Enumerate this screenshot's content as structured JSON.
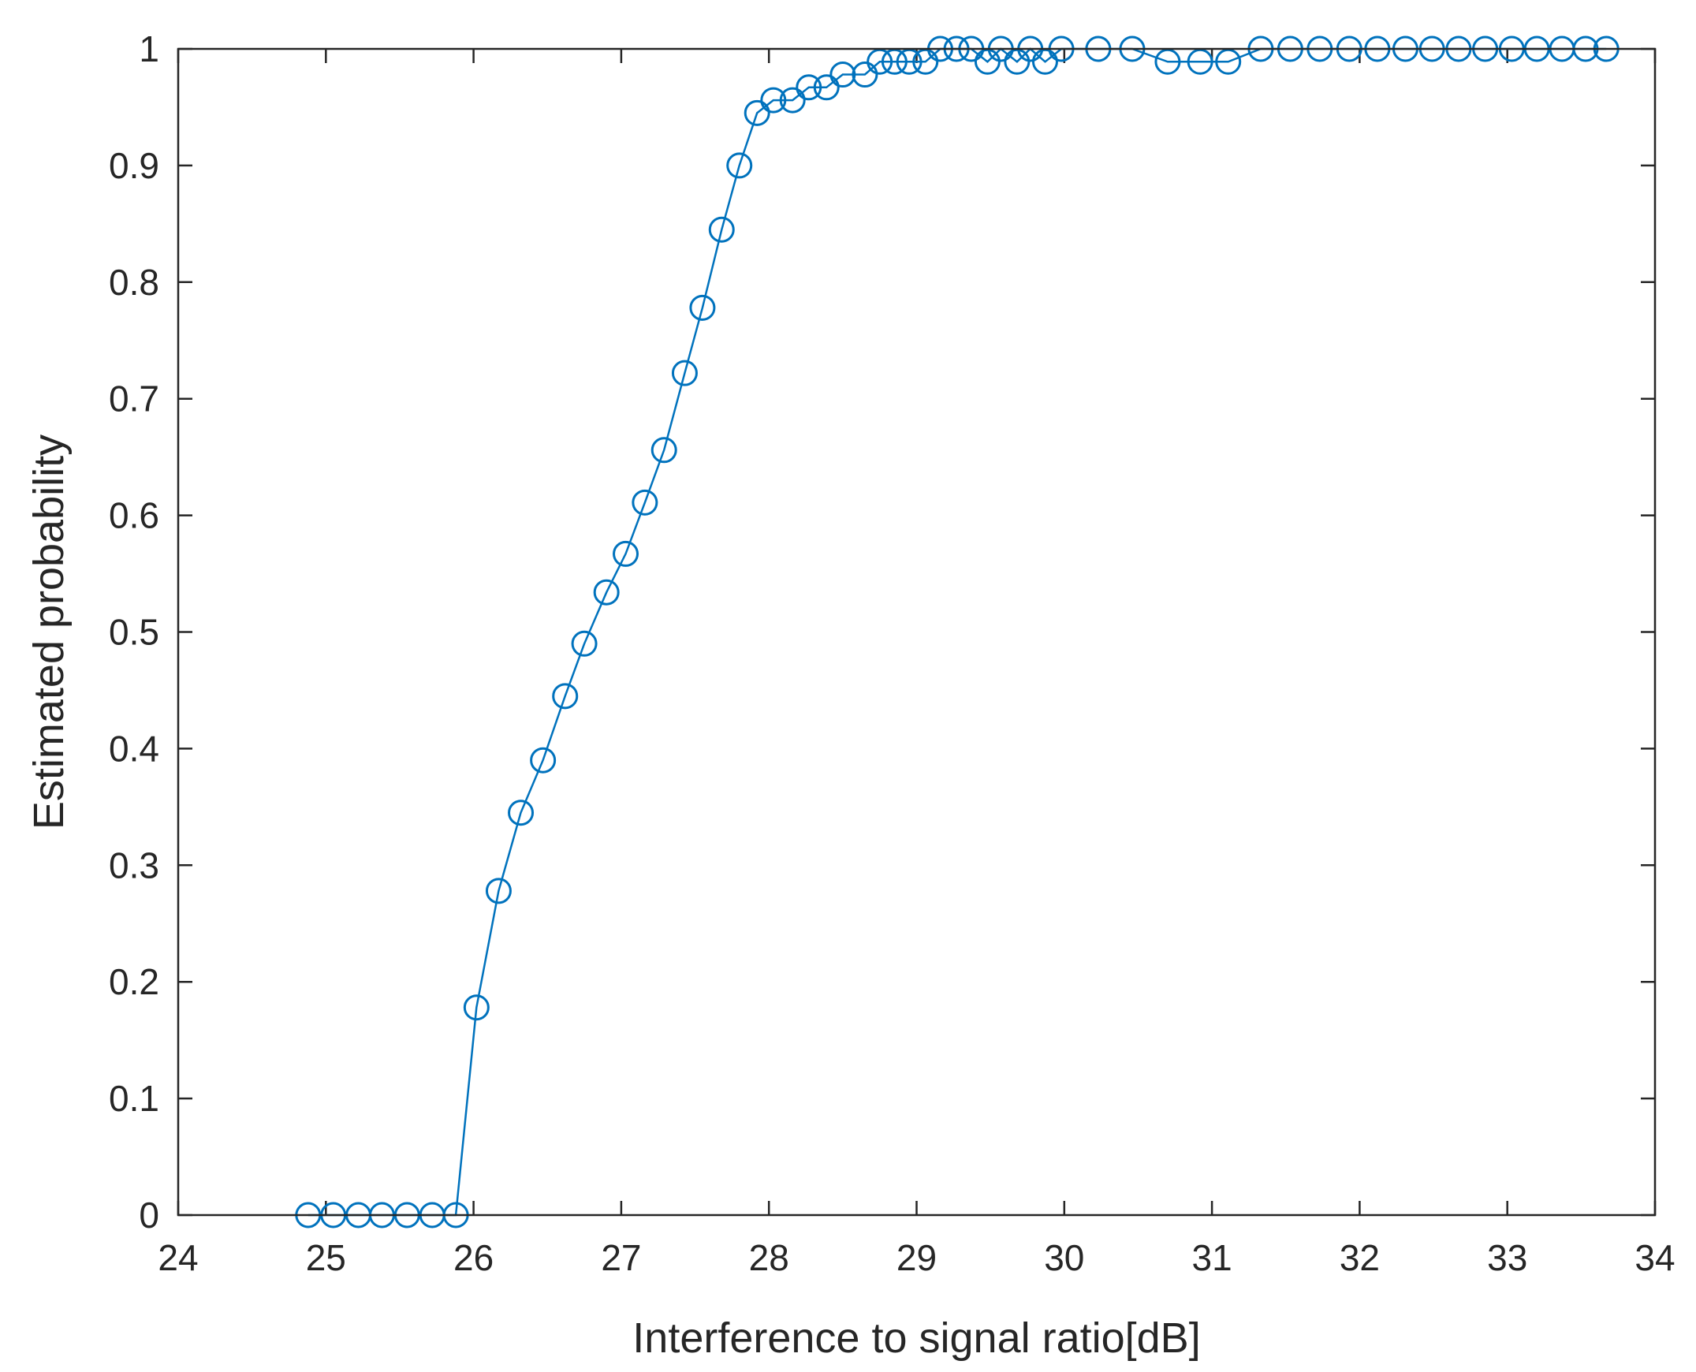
{
  "chart_data": {
    "type": "line",
    "xlabel": "Interference to signal ratio[dB]",
    "ylabel": "Estimated probability",
    "xlim": [
      24,
      34
    ],
    "ylim": [
      0,
      1
    ],
    "xticks": [
      24,
      25,
      26,
      27,
      28,
      29,
      30,
      31,
      32,
      33,
      34
    ],
    "yticks": [
      0,
      0.1,
      0.2,
      0.3,
      0.4,
      0.5,
      0.6,
      0.7,
      0.8,
      0.9,
      1
    ],
    "grid": false,
    "marker": "circle",
    "color": "#0072BD",
    "series": [
      {
        "x": [
          24.88,
          25.05,
          25.22,
          25.38,
          25.55,
          25.72,
          25.88,
          26.02,
          26.17,
          26.32,
          26.47,
          26.62,
          26.75,
          26.9,
          27.03,
          27.16,
          27.29,
          27.43,
          27.55,
          27.68,
          27.8,
          27.92,
          28.03,
          28.16,
          28.27,
          28.39,
          28.5,
          28.65,
          28.75,
          28.85,
          28.95,
          29.06,
          29.16,
          29.27,
          29.37,
          29.48,
          29.57,
          29.68,
          29.77,
          29.87,
          29.98,
          30.23,
          30.46,
          30.7,
          30.92,
          31.11,
          31.33,
          31.53,
          31.73,
          31.93,
          32.12,
          32.31,
          32.49,
          32.67,
          32.85,
          33.03,
          33.2,
          33.37,
          33.53,
          33.67
        ],
        "y": [
          0,
          0,
          0,
          0,
          0,
          0,
          0,
          0.178,
          0.278,
          0.345,
          0.39,
          0.445,
          0.49,
          0.534,
          0.567,
          0.611,
          0.656,
          0.722,
          0.778,
          0.845,
          0.9,
          0.945,
          0.956,
          0.956,
          0.967,
          0.967,
          0.978,
          0.978,
          0.989,
          0.989,
          0.989,
          0.989,
          1,
          1,
          1,
          0.989,
          1,
          0.989,
          1,
          0.989,
          1,
          1,
          1,
          0.989,
          0.989,
          0.989,
          1,
          1,
          1,
          1,
          1,
          1,
          1,
          1,
          1,
          1,
          1,
          1,
          1,
          1
        ]
      }
    ]
  }
}
